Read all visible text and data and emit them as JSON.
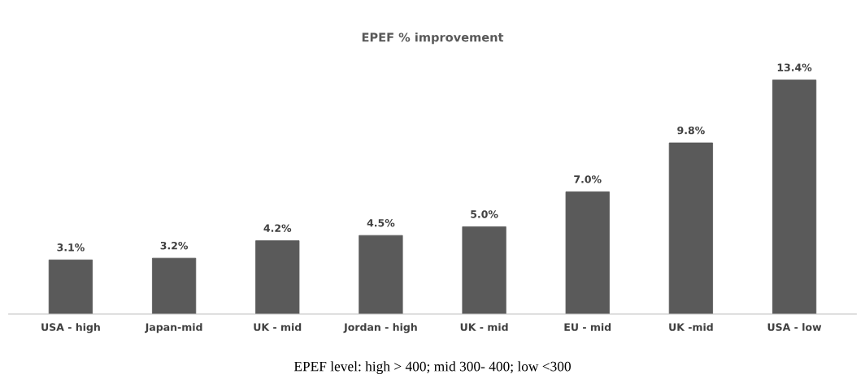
{
  "chart_data": {
    "type": "bar",
    "title": "EPEF % improvement",
    "categories": [
      "USA - high",
      "Japan-mid",
      "UK - mid",
      "Jordan - high",
      "UK - mid",
      "EU - mid",
      "UK -mid",
      "USA - low"
    ],
    "values": [
      3.1,
      3.2,
      4.2,
      4.5,
      5.0,
      7.0,
      9.8,
      13.4
    ],
    "value_labels": [
      "3.1%",
      "3.2%",
      "4.2%",
      "4.5%",
      "5.0%",
      "7.0%",
      "9.8%",
      "13.4%"
    ],
    "color": "#5a5a5a",
    "annotations": [
      "EPEF level: high > 400; mid 300- 400; low <300"
    ]
  }
}
